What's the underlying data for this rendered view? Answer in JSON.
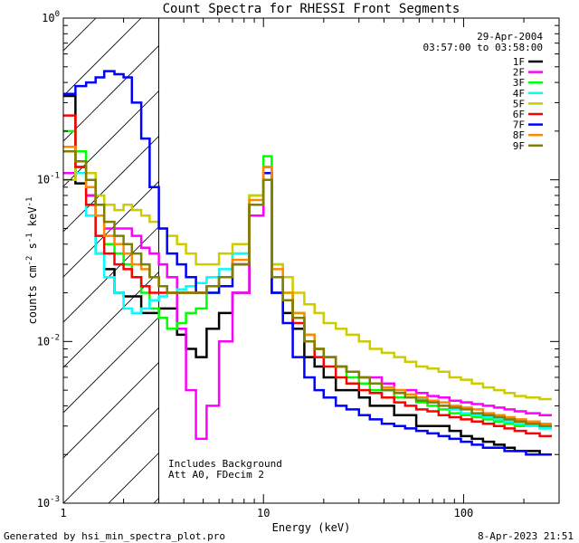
{
  "chart_data": {
    "type": "line",
    "title": "Count Spectra for RHESSI Front Segments",
    "xlabel": "Energy (keV)",
    "ylabel_parts": {
      "base": "counts cm",
      "e1": "-2",
      "s": " s",
      "e2": "-1",
      "kev": " keV",
      "e3": "-1"
    },
    "xscale": "log",
    "yscale": "log",
    "xlim": [
      1,
      300
    ],
    "ylim": [
      0.001,
      1
    ],
    "xticks": [
      {
        "v": 1,
        "label": "1"
      },
      {
        "v": 10,
        "label": "10"
      },
      {
        "v": 100,
        "label": "100"
      }
    ],
    "yticks": [
      {
        "v": 1,
        "base": "10",
        "exp": "0"
      },
      {
        "v": 0.1,
        "base": "10",
        "exp": "-1"
      },
      {
        "v": 0.01,
        "base": "10",
        "exp": "-2"
      },
      {
        "v": 0.001,
        "base": "10",
        "exp": "-3"
      }
    ],
    "hatched_region": [
      1,
      3
    ],
    "date": "29-Apr-2004",
    "time_range": "03:57:00 to 03:58:00",
    "notes": [
      "Includes Background",
      "Att A0, FDecim 2"
    ],
    "legend_placement": "top-right",
    "series": [
      {
        "name": "1F",
        "color": "#000000",
        "values": [
          0.33,
          0.095,
          0.08,
          0.035,
          0.028,
          0.02,
          0.019,
          0.019,
          0.015,
          0.015,
          0.016,
          0.016,
          0.011,
          0.009,
          0.008,
          0.012,
          0.015,
          0.02,
          0.06,
          0.1,
          0.02,
          0.015,
          0.012,
          0.008,
          0.007,
          0.006,
          0.005,
          0.005,
          0.0045,
          0.004,
          0.004,
          0.0035,
          0.0035,
          0.003,
          0.003,
          0.003,
          0.0028,
          0.0026,
          0.0025,
          0.0024,
          0.0023,
          0.0022,
          0.0021,
          0.0021,
          0.002
        ]
      },
      {
        "name": "2F",
        "color": "#ff00ff",
        "values": [
          0.11,
          0.12,
          0.08,
          0.06,
          0.05,
          0.05,
          0.05,
          0.045,
          0.038,
          0.035,
          0.03,
          0.025,
          0.012,
          0.005,
          0.0025,
          0.004,
          0.01,
          0.02,
          0.06,
          0.12,
          0.025,
          0.018,
          0.014,
          0.01,
          0.009,
          0.008,
          0.007,
          0.0065,
          0.006,
          0.006,
          0.0055,
          0.005,
          0.005,
          0.0048,
          0.0046,
          0.0045,
          0.0043,
          0.0042,
          0.0041,
          0.004,
          0.0039,
          0.0038,
          0.0037,
          0.0036,
          0.0035
        ]
      },
      {
        "name": "3F",
        "color": "#00ff00",
        "values": [
          0.2,
          0.15,
          0.1,
          0.06,
          0.04,
          0.035,
          0.03,
          0.025,
          0.02,
          0.016,
          0.014,
          0.012,
          0.013,
          0.015,
          0.016,
          0.02,
          0.025,
          0.035,
          0.08,
          0.14,
          0.03,
          0.02,
          0.015,
          0.011,
          0.009,
          0.008,
          0.007,
          0.006,
          0.0055,
          0.005,
          0.005,
          0.0045,
          0.0045,
          0.0042,
          0.004,
          0.0038,
          0.0036,
          0.0035,
          0.0034,
          0.0033,
          0.0032,
          0.0031,
          0.003,
          0.003,
          0.0029
        ]
      },
      {
        "name": "4F",
        "color": "#00ffff",
        "values": [
          0.15,
          0.11,
          0.06,
          0.035,
          0.025,
          0.02,
          0.016,
          0.015,
          0.016,
          0.018,
          0.019,
          0.02,
          0.021,
          0.022,
          0.023,
          0.025,
          0.028,
          0.035,
          0.07,
          0.1,
          0.025,
          0.018,
          0.014,
          0.01,
          0.009,
          0.008,
          0.007,
          0.0065,
          0.006,
          0.0055,
          0.005,
          0.005,
          0.0045,
          0.0044,
          0.0042,
          0.004,
          0.0038,
          0.0036,
          0.0035,
          0.0034,
          0.0033,
          0.0032,
          0.0031,
          0.003,
          0.0029
        ]
      },
      {
        "name": "5F",
        "color": "#cccc00",
        "values": [
          0.1,
          0.13,
          0.11,
          0.08,
          0.07,
          0.065,
          0.07,
          0.065,
          0.06,
          0.055,
          0.05,
          0.045,
          0.04,
          0.035,
          0.03,
          0.03,
          0.035,
          0.04,
          0.08,
          0.12,
          0.03,
          0.025,
          0.02,
          0.017,
          0.015,
          0.013,
          0.012,
          0.011,
          0.01,
          0.009,
          0.0085,
          0.008,
          0.0075,
          0.007,
          0.0068,
          0.0065,
          0.006,
          0.0058,
          0.0055,
          0.0052,
          0.005,
          0.0048,
          0.0046,
          0.0045,
          0.0044
        ]
      },
      {
        "name": "6F",
        "color": "#ff0000",
        "values": [
          0.25,
          0.12,
          0.07,
          0.045,
          0.035,
          0.03,
          0.028,
          0.025,
          0.022,
          0.02,
          0.02,
          0.02,
          0.02,
          0.02,
          0.02,
          0.022,
          0.025,
          0.03,
          0.07,
          0.11,
          0.025,
          0.018,
          0.013,
          0.01,
          0.008,
          0.007,
          0.006,
          0.0055,
          0.005,
          0.0048,
          0.0045,
          0.0042,
          0.004,
          0.0038,
          0.0037,
          0.0035,
          0.0034,
          0.0033,
          0.0032,
          0.0031,
          0.003,
          0.0029,
          0.0028,
          0.0027,
          0.0026
        ]
      },
      {
        "name": "7F",
        "color": "#0000ff",
        "values": [
          0.34,
          0.38,
          0.4,
          0.43,
          0.47,
          0.45,
          0.43,
          0.3,
          0.18,
          0.09,
          0.05,
          0.035,
          0.03,
          0.025,
          0.02,
          0.02,
          0.022,
          0.03,
          0.07,
          0.11,
          0.02,
          0.013,
          0.008,
          0.006,
          0.005,
          0.0045,
          0.004,
          0.0038,
          0.0035,
          0.0033,
          0.0031,
          0.003,
          0.0029,
          0.0028,
          0.0027,
          0.0026,
          0.0025,
          0.0024,
          0.0023,
          0.0022,
          0.0022,
          0.0021,
          0.0021,
          0.002,
          0.002
        ]
      },
      {
        "name": "8F",
        "color": "#ff8800",
        "values": [
          0.16,
          0.13,
          0.09,
          0.06,
          0.045,
          0.04,
          0.035,
          0.03,
          0.028,
          0.025,
          0.022,
          0.02,
          0.02,
          0.02,
          0.02,
          0.022,
          0.025,
          0.032,
          0.075,
          0.12,
          0.028,
          0.02,
          0.015,
          0.011,
          0.009,
          0.008,
          0.007,
          0.0065,
          0.006,
          0.0055,
          0.0052,
          0.005,
          0.0047,
          0.0045,
          0.0043,
          0.0042,
          0.004,
          0.0039,
          0.0038,
          0.0036,
          0.0035,
          0.0034,
          0.0033,
          0.0032,
          0.0031
        ]
      },
      {
        "name": "9F",
        "color": "#808000",
        "values": [
          0.15,
          0.13,
          0.1,
          0.07,
          0.055,
          0.045,
          0.04,
          0.035,
          0.03,
          0.025,
          0.022,
          0.02,
          0.02,
          0.02,
          0.02,
          0.022,
          0.025,
          0.03,
          0.07,
          0.1,
          0.025,
          0.018,
          0.014,
          0.01,
          0.009,
          0.008,
          0.007,
          0.0065,
          0.006,
          0.0055,
          0.005,
          0.0048,
          0.0045,
          0.0043,
          0.0042,
          0.004,
          0.0039,
          0.0038,
          0.0036,
          0.0035,
          0.0034,
          0.0033,
          0.0032,
          0.0031,
          0.003
        ]
      }
    ],
    "x": [
      1.0,
      1.15,
      1.3,
      1.45,
      1.6,
      1.8,
      2.0,
      2.2,
      2.45,
      2.7,
      3.0,
      3.3,
      3.7,
      4.1,
      4.6,
      5.2,
      6.0,
      7.0,
      8.5,
      10.0,
      11.0,
      12.5,
      14.0,
      16.0,
      18.0,
      20.0,
      23.0,
      26.0,
      30.0,
      34.0,
      39.0,
      45.0,
      51.0,
      58.0,
      66.0,
      75.0,
      85.0,
      97.0,
      110.0,
      125.0,
      142.0,
      160.0,
      180.0,
      205.0,
      240.0
    ]
  },
  "footer": {
    "generated_by": "Generated by hsi_min_spectra_plot.pro",
    "timestamp": "8-Apr-2023 21:51"
  }
}
